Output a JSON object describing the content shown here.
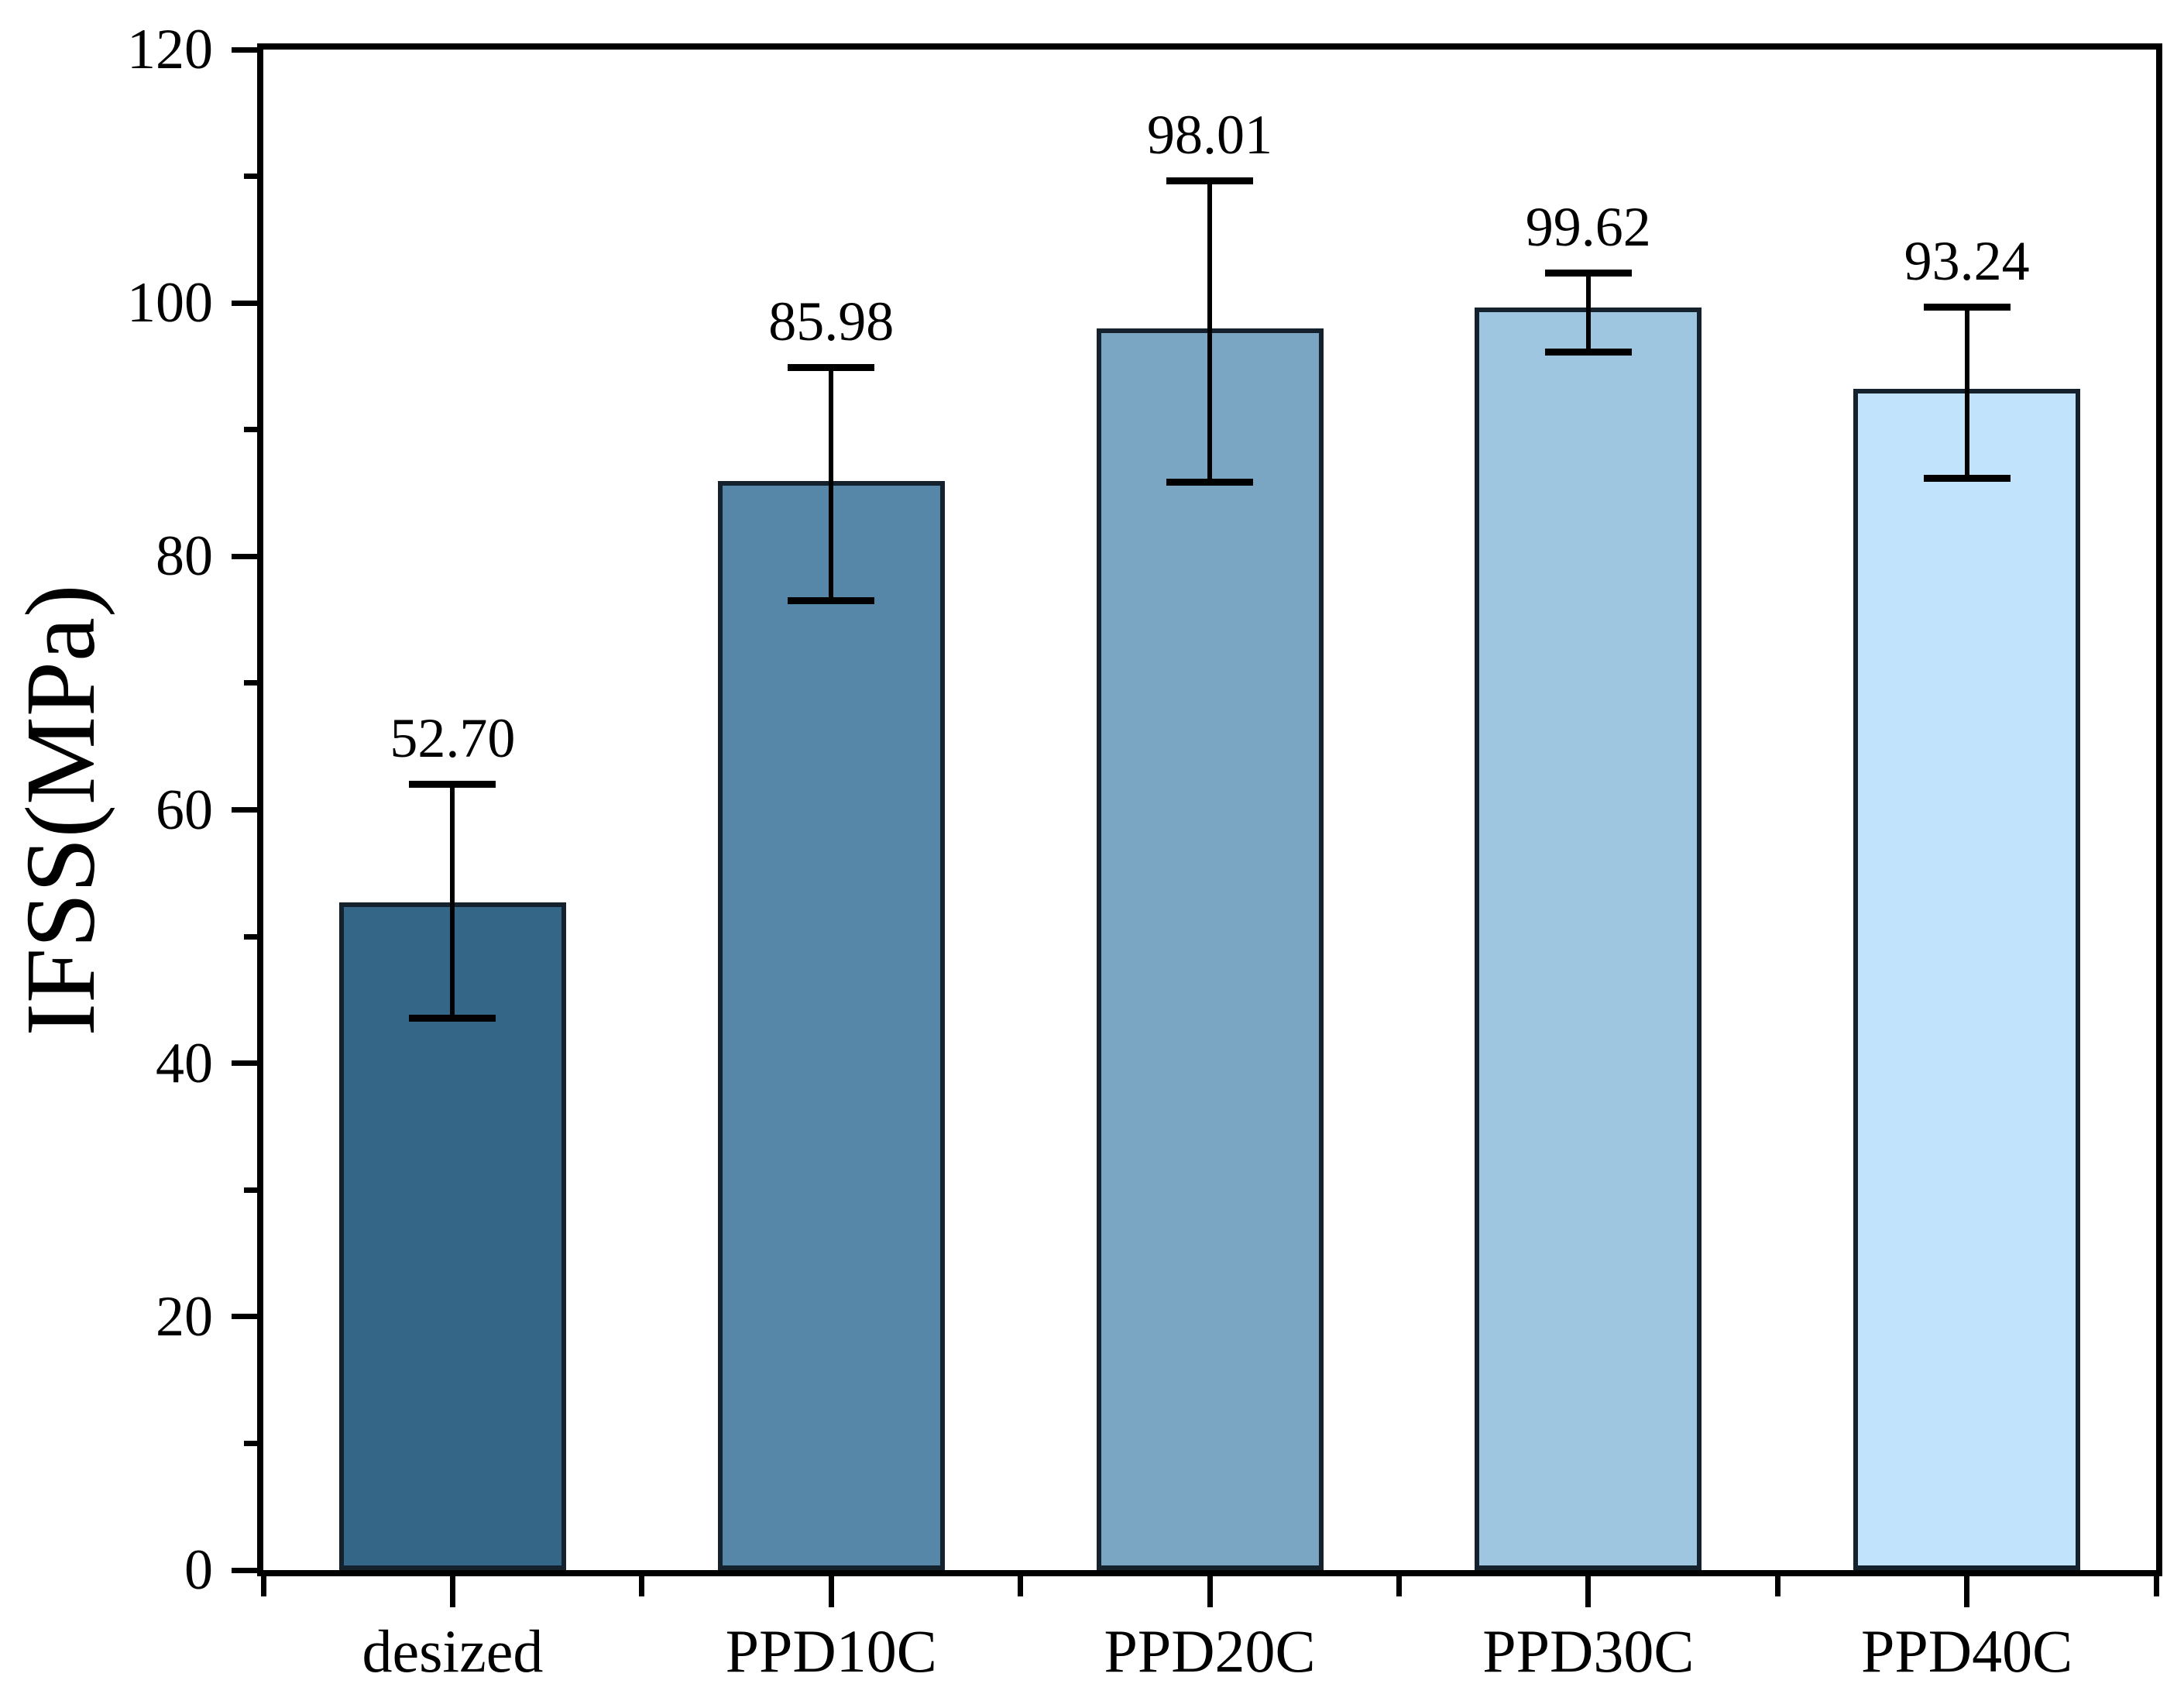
{
  "chart_data": {
    "type": "bar",
    "title": "",
    "ylabel": "IFSS(MPa)",
    "xlabel": "",
    "categories": [
      "desized",
      "PPD10C",
      "PPD20C",
      "PPD30C",
      "PPD40C"
    ],
    "values": [
      52.7,
      85.98,
      98.01,
      99.62,
      93.24
    ],
    "value_labels": [
      "52.70",
      "85.98",
      "98.01",
      "99.62",
      "93.24"
    ],
    "errors_upper": [
      9.3,
      8.9,
      11.6,
      2.7,
      6.4
    ],
    "errors_lower": [
      9.2,
      9.5,
      12.2,
      3.5,
      7.1
    ],
    "ylim": [
      0,
      120
    ],
    "y_major_ticks": [
      0,
      20,
      40,
      60,
      80,
      100,
      120
    ],
    "y_minor_ticks": [
      10,
      30,
      50,
      70,
      90,
      110
    ],
    "bar_colors": [
      "#346688",
      "#5787a8",
      "#7aa6c4",
      "#9fc6e0",
      "#c2e3fc"
    ],
    "bar_edge_color": "#15212c",
    "axis_color": "#000000",
    "error_bar_color": "#000000",
    "text_color": "#000000",
    "background_color": "#ffffff",
    "grid": false,
    "legend": "none"
  }
}
